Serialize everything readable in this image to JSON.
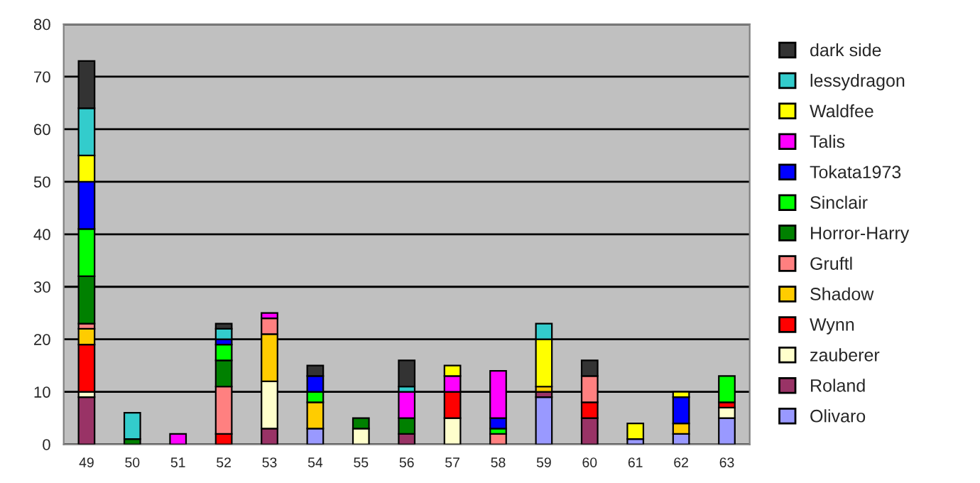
{
  "chart_data": {
    "type": "bar",
    "stacked": true,
    "categories": [
      "49",
      "50",
      "51",
      "52",
      "53",
      "54",
      "55",
      "56",
      "57",
      "58",
      "59",
      "60",
      "61",
      "62",
      "63"
    ],
    "ylim": [
      0,
      80
    ],
    "yticks": [
      0,
      10,
      20,
      30,
      40,
      50,
      60,
      70,
      80
    ],
    "grid": "y",
    "legend": "right",
    "series": [
      {
        "name": "Olivaro",
        "color": "#9999ff",
        "values": [
          null,
          null,
          null,
          null,
          null,
          3,
          null,
          null,
          null,
          null,
          9,
          null,
          1,
          2,
          5
        ]
      },
      {
        "name": "Roland",
        "color": "#993366",
        "values": [
          9,
          null,
          null,
          null,
          3,
          null,
          null,
          2,
          null,
          null,
          1,
          5,
          null,
          null,
          null
        ]
      },
      {
        "name": "zauberer",
        "color": "#ffffcc",
        "values": [
          1,
          null,
          null,
          null,
          9,
          null,
          3,
          null,
          5,
          null,
          null,
          null,
          null,
          null,
          2
        ]
      },
      {
        "name": "Wynn",
        "color": "#ff0000",
        "values": [
          9,
          null,
          null,
          2,
          null,
          null,
          null,
          null,
          5,
          null,
          null,
          3,
          null,
          null,
          1
        ]
      },
      {
        "name": "Shadow",
        "color": "#ffcc00",
        "values": [
          3,
          null,
          null,
          null,
          9,
          5,
          null,
          null,
          null,
          null,
          1,
          null,
          null,
          2,
          null
        ]
      },
      {
        "name": "Gruftl",
        "color": "#ff8080",
        "values": [
          1,
          null,
          null,
          9,
          3,
          null,
          null,
          null,
          null,
          2,
          null,
          5,
          null,
          null,
          null
        ]
      },
      {
        "name": "Horror-Harry",
        "color": "#008000",
        "values": [
          9,
          1,
          null,
          5,
          null,
          null,
          2,
          3,
          null,
          null,
          null,
          null,
          null,
          null,
          null
        ]
      },
      {
        "name": "Sinclair",
        "color": "#00ff00",
        "values": [
          9,
          null,
          null,
          3,
          null,
          2,
          null,
          null,
          null,
          1,
          null,
          null,
          null,
          null,
          5
        ]
      },
      {
        "name": "Tokata1973",
        "color": "#0000ff",
        "values": [
          9,
          null,
          null,
          1,
          null,
          3,
          null,
          null,
          null,
          2,
          null,
          null,
          null,
          5,
          null
        ]
      },
      {
        "name": "Talis",
        "color": "#ff00ff",
        "values": [
          null,
          null,
          2,
          null,
          1,
          null,
          null,
          5,
          3,
          9,
          null,
          null,
          null,
          null,
          null
        ]
      },
      {
        "name": "Waldfee",
        "color": "#ffff00",
        "values": [
          5,
          null,
          null,
          null,
          null,
          null,
          null,
          null,
          2,
          null,
          9,
          null,
          3,
          1,
          null
        ]
      },
      {
        "name": "lessydragon",
        "color": "#33cccc",
        "values": [
          9,
          5,
          null,
          2,
          null,
          null,
          null,
          1,
          null,
          null,
          3,
          null,
          null,
          null,
          null
        ]
      },
      {
        "name": "dark side",
        "color": "#333333",
        "values": [
          9,
          null,
          null,
          1,
          null,
          2,
          null,
          5,
          null,
          null,
          null,
          3,
          null,
          null,
          null
        ]
      }
    ]
  }
}
